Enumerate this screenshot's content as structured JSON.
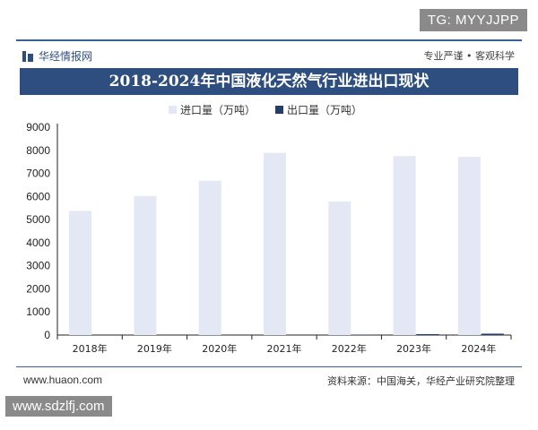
{
  "overlay_tag": "TG: MYYJJPP",
  "header": {
    "brand": "华经情报网",
    "slogan": "专业严谨 • 客观科学"
  },
  "footer": {
    "website": "www.huaon.com",
    "source": "资料来源：中国海关，华经产业研究院整理"
  },
  "watermark": "www.sdzlfj.com",
  "colors": {
    "accent": "#2e4e80",
    "import": "#e4e8f4",
    "export": "#243e6a"
  },
  "chart_data": {
    "type": "bar",
    "title": "2018-2024年中国液化天然气行业进出口现状",
    "categories": [
      "2018年",
      "2019年",
      "2020年",
      "2021年",
      "2022年",
      "2023年",
      "2024年"
    ],
    "series": [
      {
        "name": "进口量（万吨）",
        "values": [
          5380,
          6020,
          6680,
          7890,
          5780,
          7750,
          7720
        ]
      },
      {
        "name": "出口量（万吨）",
        "values": [
          0,
          0,
          0,
          0,
          20,
          40,
          60
        ]
      }
    ],
    "yticks": [
      "0",
      "1000",
      "2000",
      "3000",
      "4000",
      "5000",
      "6000",
      "7000",
      "8000",
      "9000"
    ],
    "ylim": [
      0,
      9000
    ],
    "grid": false,
    "legend": "top"
  }
}
